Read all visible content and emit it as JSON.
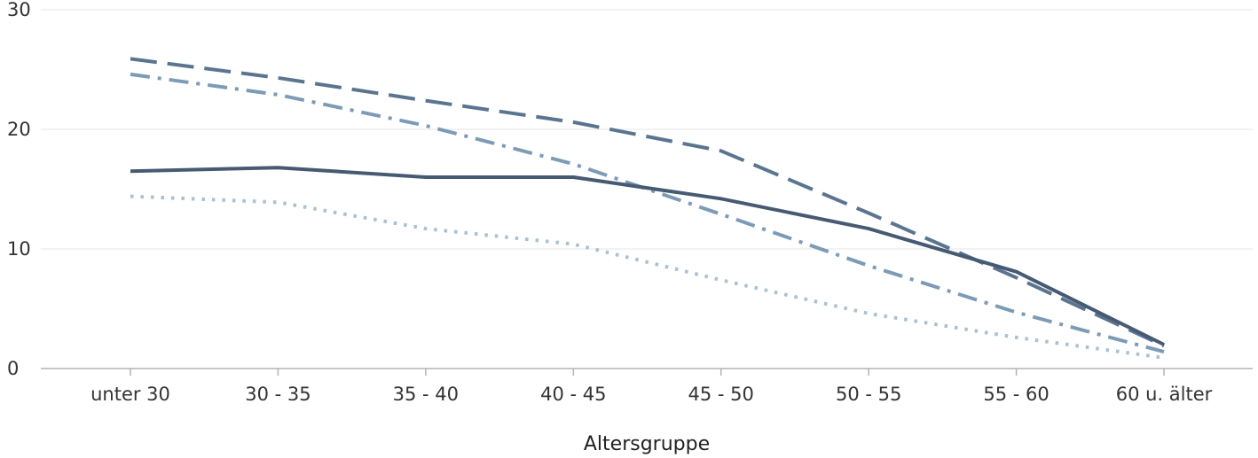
{
  "chart_data": {
    "type": "line",
    "xlabel": "Altersgruppe",
    "ylabel": "",
    "ylim": [
      0,
      30
    ],
    "yticks": [
      0,
      10,
      20,
      30
    ],
    "grid": true,
    "legend": "none",
    "categories": [
      "unter 30",
      "30 - 35",
      "35 - 40",
      "40 - 45",
      "45 - 50",
      "50 - 55",
      "55 - 60",
      "60 u. älter"
    ],
    "series": [
      {
        "values": [
          25.9,
          24.3,
          22.4,
          20.6,
          18.2,
          13.0,
          7.6,
          1.9
        ],
        "color": "#5a7590",
        "style": "dashed"
      },
      {
        "values": [
          24.6,
          22.9,
          20.3,
          17.1,
          12.9,
          8.6,
          4.7,
          1.4
        ],
        "color": "#7c9bb6",
        "style": "dash-dot"
      },
      {
        "values": [
          16.5,
          16.8,
          16.0,
          16.0,
          14.2,
          11.7,
          8.1,
          2.0
        ],
        "color": "#465a73",
        "style": "solid"
      },
      {
        "values": [
          14.4,
          13.9,
          11.7,
          10.4,
          7.4,
          4.6,
          2.6,
          0.9
        ],
        "color": "#a9c1d3",
        "style": "dotted"
      }
    ]
  }
}
